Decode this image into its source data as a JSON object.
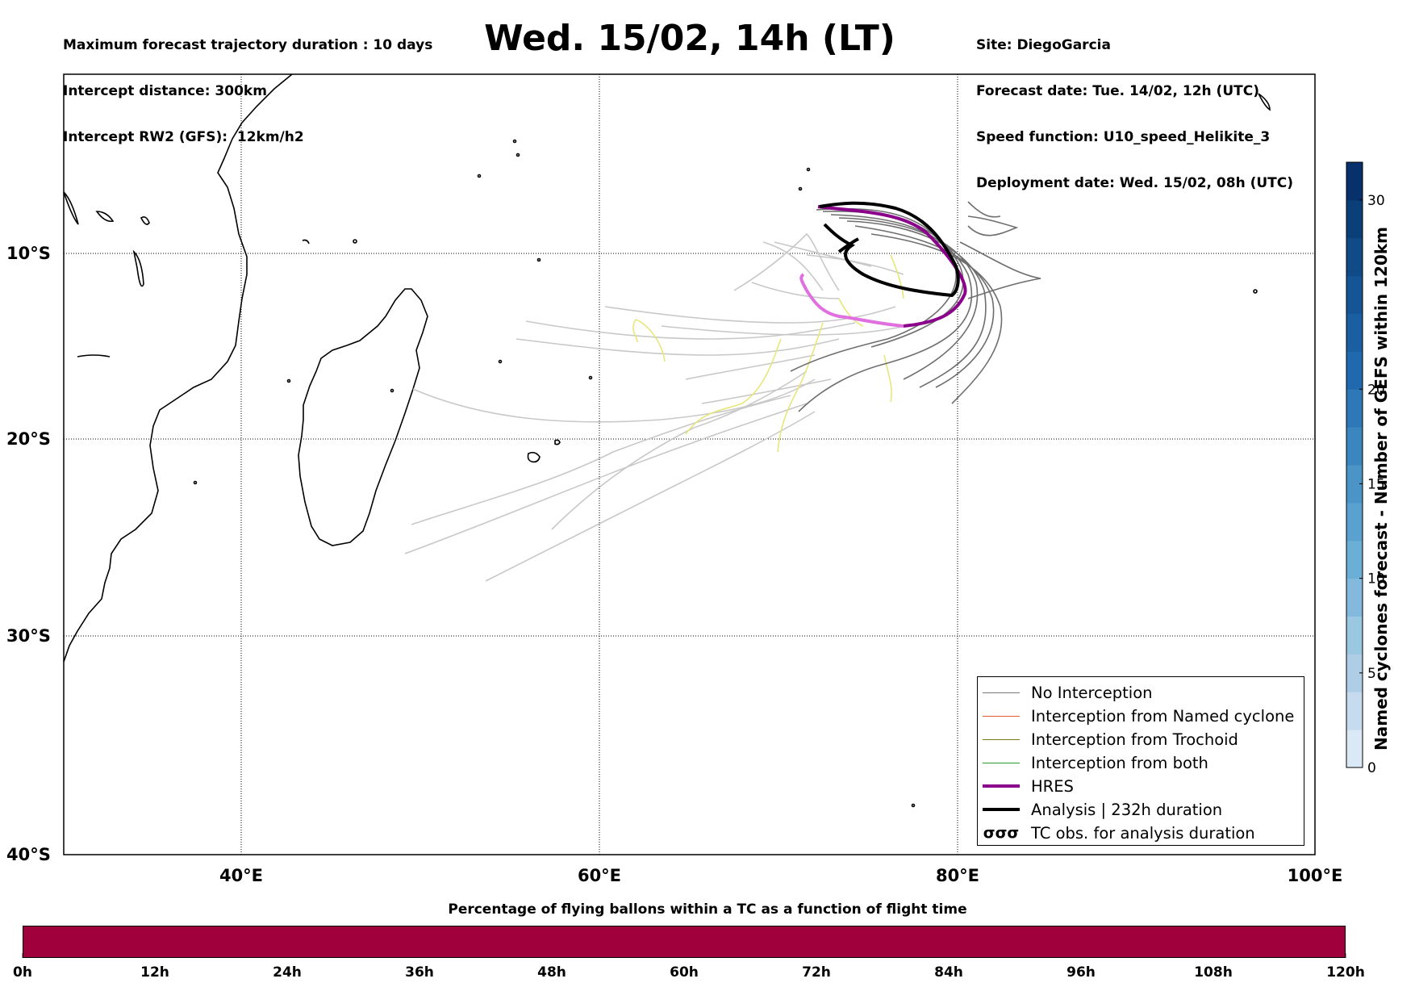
{
  "header_left": [
    "Maximum forecast trajectory duration : 10 days",
    "Intercept distance: 300km",
    "Intercept RW2 (GFS):  12km/h2"
  ],
  "header_right": [
    "Site: DiegoGarcia",
    "Forecast date: Tue. 14/02, 12h (UTC)",
    "Speed function: U10_speed_Helikite_3",
    "Deployment date: Wed. 15/02, 08h (UTC)"
  ],
  "title": "Wed. 15/02, 14h (LT)",
  "map": {
    "lon_range": [
      30,
      100
    ],
    "lat_range": [
      -40,
      -0.3
    ],
    "lon_ticks": [
      {
        "value": 40,
        "label": "40°E"
      },
      {
        "value": 60,
        "label": "60°E"
      },
      {
        "value": 80,
        "label": "80°E"
      },
      {
        "value": 100,
        "label": "100°E"
      }
    ],
    "lat_ticks": [
      {
        "value": -10,
        "label": "10°S"
      },
      {
        "value": -20,
        "label": "20°S"
      },
      {
        "value": -30,
        "label": "30°S"
      },
      {
        "value": -40,
        "label": "40°S"
      }
    ],
    "grid": "dotted"
  },
  "legend": [
    {
      "label": "No Interception",
      "color": "#777777",
      "width": 1.5
    },
    {
      "label": "Interception from Named cyclone",
      "color": "#e05a2a",
      "width": 1.5
    },
    {
      "label": "Interception from Trochoid",
      "color": "#7a7a1a",
      "width": 1.5
    },
    {
      "label": "Interception from both",
      "color": "#2a9a2a",
      "width": 1.5
    },
    {
      "label": "HRES",
      "color": "#8b008b",
      "width": 4
    },
    {
      "label": "Analysis | 232h duration",
      "color": "#000000",
      "width": 4
    },
    {
      "label": "TC obs. for analysis duration",
      "color": "#000000",
      "icon": "cyclone-symbols-icon"
    }
  ],
  "legend_icon_text": "σσσ",
  "right_colorbar": {
    "label": "Named cyclones forecast - Number of GEFS within 120km",
    "ticks": [
      0,
      5,
      10,
      15,
      20,
      30
    ],
    "range": [
      0,
      32
    ],
    "colors": [
      "#dbe8f6",
      "#c7dbef",
      "#b0cde6",
      "#9ac8e0",
      "#82b9dc",
      "#6baed6",
      "#5aa1cf",
      "#4a94c8",
      "#3c86c0",
      "#2e78b8",
      "#2169ae",
      "#1a5fa2",
      "#155495",
      "#104a87",
      "#0b3f77",
      "#08306b"
    ]
  },
  "bottom_colorbar": {
    "title": "Percentage of flying ballons within a TC as a function of flight time",
    "color": "#a0003c",
    "ticks": [
      "0h",
      "12h",
      "24h",
      "36h",
      "48h",
      "60h",
      "72h",
      "84h",
      "96h",
      "108h",
      "120h"
    ]
  }
}
